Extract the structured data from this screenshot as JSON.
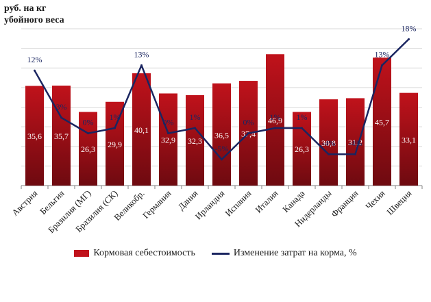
{
  "y_unit_label": "руб. на кг\nубойного веса",
  "chart_data": {
    "type": "bar",
    "title": "",
    "ylabel": "руб. на кг убойного веса",
    "ylim": [
      0,
      56
    ],
    "grid": true,
    "categories": [
      "Австрия",
      "Бельгия",
      "Бразилия (МГ)",
      "Бразилия (СК)",
      "Великобр.",
      "Германия",
      "Дания",
      "Ирландия",
      "Испания",
      "Италия",
      "Канада",
      "Нидерланды",
      "Франция",
      "Чехия",
      "Швеция"
    ],
    "series": [
      {
        "name": "Кормовая себестоимость",
        "type": "bar",
        "color": "#c0121b",
        "values": [
          35.6,
          35.7,
          26.3,
          29.9,
          40.1,
          32.9,
          32.3,
          36.5,
          37.4,
          46.9,
          26.3,
          30.8,
          31.2,
          45.7,
          33.1
        ],
        "labels": [
          "35,6",
          "35,7",
          "26,3",
          "29,9",
          "40,1",
          "32,9",
          "32,3",
          "36,5",
          "37,4",
          "46,9",
          "26,3",
          "30,8",
          "31,2",
          "45,7",
          "33,1"
        ]
      },
      {
        "name": "Изменение затрат на корма, %",
        "type": "line",
        "color": "#1a2560",
        "values": [
          12,
          3,
          0,
          1,
          13,
          0,
          1,
          -5,
          0,
          1,
          1,
          -4,
          -4,
          13,
          18
        ],
        "labels": [
          "12%",
          "3%",
          "0%",
          "1%",
          "13%",
          "0%",
          "1%",
          "-5%",
          "0%",
          "1%",
          "1%",
          "-4%",
          "-4%",
          "13%",
          "18%"
        ],
        "axis_range": [
          -10,
          20
        ]
      }
    ],
    "legend": {
      "position": "bottom",
      "bar_label": "Кормовая себестоимость",
      "line_label": "Изменение затрат на корма, %"
    }
  }
}
